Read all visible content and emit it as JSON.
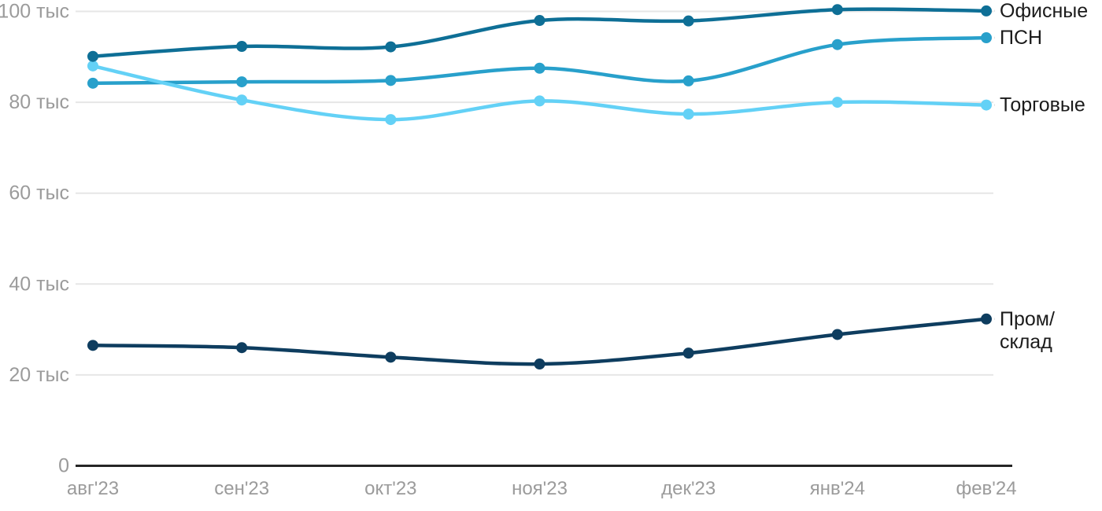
{
  "chart_data": {
    "type": "line",
    "title": "",
    "unit": "тыс",
    "x_labels": [
      "авг'23",
      "сен'23",
      "окт'23",
      "ноя'23",
      "дек'23",
      "янв'24",
      "фев'24"
    ],
    "y_ticks": [
      {
        "value": 0,
        "label": "0"
      },
      {
        "value": 20,
        "label": "20 тыс"
      },
      {
        "value": 40,
        "label": "40 тыс"
      },
      {
        "value": 60,
        "label": "60 тыс"
      },
      {
        "value": 80,
        "label": "80 тыс"
      },
      {
        "value": 100,
        "label": "100 тыс"
      }
    ],
    "ylim": [
      0,
      105
    ],
    "grid": "horizontal-only",
    "legend_position": "labels-at-line-ends-right",
    "series": [
      {
        "key": "prom-sklad",
        "name": "Пром/склад",
        "label_lines": [
          "Пром/",
          "склад"
        ],
        "color": "#0e3d5f",
        "values": [
          26.5,
          26.0,
          23.9,
          22.4,
          24.8,
          28.9,
          32.3
        ]
      },
      {
        "key": "psn",
        "name": "ПСН",
        "label_lines": [
          "ПСН"
        ],
        "color": "#28a0cb",
        "values": [
          84.2,
          84.5,
          84.8,
          87.5,
          84.7,
          92.7,
          94.2
        ]
      },
      {
        "key": "torgovye",
        "name": "Торговые",
        "label_lines": [
          "Торговые"
        ],
        "color": "#63d1f6",
        "values": [
          88.0,
          80.5,
          76.2,
          80.3,
          77.4,
          80.0,
          79.4
        ]
      },
      {
        "key": "ofisnye",
        "name": "Офисные",
        "label_lines": [
          "Офисные"
        ],
        "color": "#0e6f96",
        "values": [
          90.1,
          92.3,
          92.2,
          98.0,
          97.9,
          100.4,
          100.1
        ]
      }
    ],
    "colors": {
      "background": "#ffffff",
      "grid": "#e6e6e6",
      "axis": "#262626",
      "tick_text": "#9b9b9b",
      "series_label_text": "#1b1b1b",
      "connector": "#e2e2e2"
    }
  }
}
